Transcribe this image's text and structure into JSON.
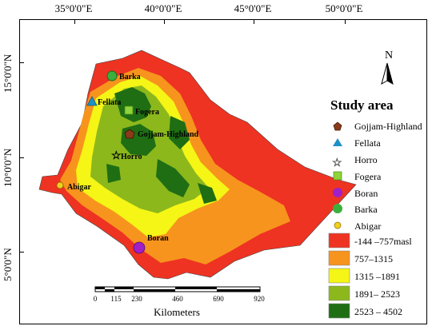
{
  "axes": {
    "top_ticks": [
      "35°0'0\"E",
      "40°0'0\"E",
      "45°0'0\"E",
      "50°0'0\"E"
    ],
    "left_ticks": [
      "15°0'0\"N",
      "10°0'0\"N",
      "5°0'0\"N"
    ]
  },
  "map": {
    "north_label": "N",
    "places": [
      {
        "name": "Barka",
        "symbol": "green-circle-icon"
      },
      {
        "name": "Fellata",
        "symbol": "blue-triangle-icon"
      },
      {
        "name": "Fogera",
        "symbol": "lime-square-icon"
      },
      {
        "name": "Gojjam-Highland",
        "symbol": "brown-pentagon-icon"
      },
      {
        "name": "Horro",
        "symbol": "star-icon"
      },
      {
        "name": "Abigar",
        "symbol": "sun-icon"
      },
      {
        "name": "Boran",
        "symbol": "purple-circle-icon"
      }
    ]
  },
  "legend": {
    "title": "Study area",
    "items": [
      {
        "label": "Gojjam-Highland",
        "symbol": "brown-pentagon-icon",
        "color": "#8b3a1a"
      },
      {
        "label": "Fellata",
        "symbol": "blue-triangle-icon",
        "color": "#1e90c8"
      },
      {
        "label": "Horro",
        "symbol": "star-icon",
        "color": "#f2e870"
      },
      {
        "label": "Fogera",
        "symbol": "lime-square-icon",
        "color": "#8ed43a"
      },
      {
        "label": "Boran",
        "symbol": "purple-circle-icon",
        "color": "#a020c8"
      },
      {
        "label": "Barka",
        "symbol": "green-circle-icon",
        "color": "#3cb03c"
      },
      {
        "label": "Abigar",
        "symbol": "sun-icon",
        "color": "#f2d020"
      }
    ],
    "classes": [
      {
        "label": "-144 –757masl",
        "color": "#ee3322"
      },
      {
        "label": "757–1315",
        "color": "#f7941d"
      },
      {
        "label": "1315 –1891",
        "color": "#f5f516"
      },
      {
        "label": "1891– 2523",
        "color": "#8cb81c"
      },
      {
        "label": "2523 – 4502",
        "color": "#1f6e14"
      }
    ]
  },
  "scalebar": {
    "ticks": [
      "0",
      "115",
      "230",
      "460",
      "690",
      "920"
    ],
    "unit": "Kilometers"
  }
}
